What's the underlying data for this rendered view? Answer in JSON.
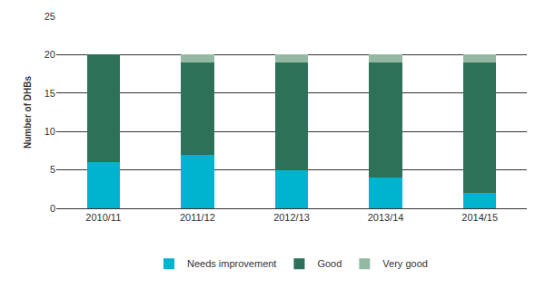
{
  "chart_data": {
    "type": "bar",
    "stacked": true,
    "grid": true,
    "legend": "bottom",
    "y_label": "Number of DHBs",
    "categories": [
      "2010/11",
      "2011/12",
      "2012/13",
      "2013/14",
      "2014/15"
    ],
    "series": [
      {
        "name": "Needs improvement",
        "color": "#00b4d0",
        "values": [
          6,
          7,
          5,
          4,
          2
        ]
      },
      {
        "name": "Good",
        "color": "#2d7158",
        "values": [
          14,
          12,
          14,
          15,
          17
        ]
      },
      {
        "name": "Very good",
        "color": "#93b9a4",
        "values": [
          0,
          1,
          1,
          1,
          1
        ]
      }
    ],
    "ylim": [
      0,
      25
    ],
    "yticks": [
      0,
      5,
      10,
      15,
      20,
      25
    ]
  }
}
